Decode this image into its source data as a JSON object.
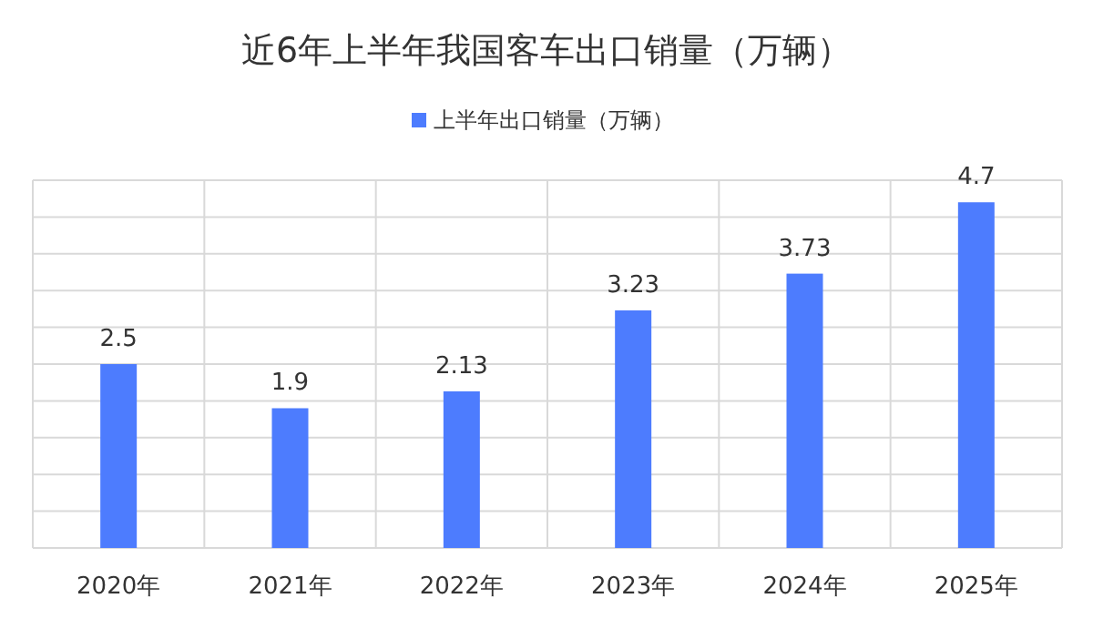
{
  "chart_data": {
    "type": "bar",
    "title": "近6年上半年我国客车出口销量（万辆）",
    "categories": [
      "2020年",
      "2021年",
      "2022年",
      "2023年",
      "2024年",
      "2025年"
    ],
    "series": [
      {
        "name": "上半年出口销量（万辆）",
        "color": "#4d7cfe",
        "values": [
          2.5,
          1.9,
          2.13,
          3.23,
          3.73,
          4.7
        ]
      }
    ],
    "ylim": [
      0,
      5
    ],
    "yticks": [
      {
        "value": 0,
        "label": null
      },
      {
        "value": 0.5,
        "label": null
      },
      {
        "value": 1,
        "label": null
      },
      {
        "value": 1.5,
        "label": null
      },
      {
        "value": 2,
        "label": null
      },
      {
        "value": 2.5,
        "label": null
      },
      {
        "value": 3,
        "label": null
      },
      {
        "value": 3.5,
        "label": null
      },
      {
        "value": 4,
        "label": null
      },
      {
        "value": 4.5,
        "label": null
      },
      {
        "value": 5,
        "label": null
      }
    ],
    "tick_labels": "x",
    "grid": true,
    "legend": "top",
    "data_labels": true
  }
}
